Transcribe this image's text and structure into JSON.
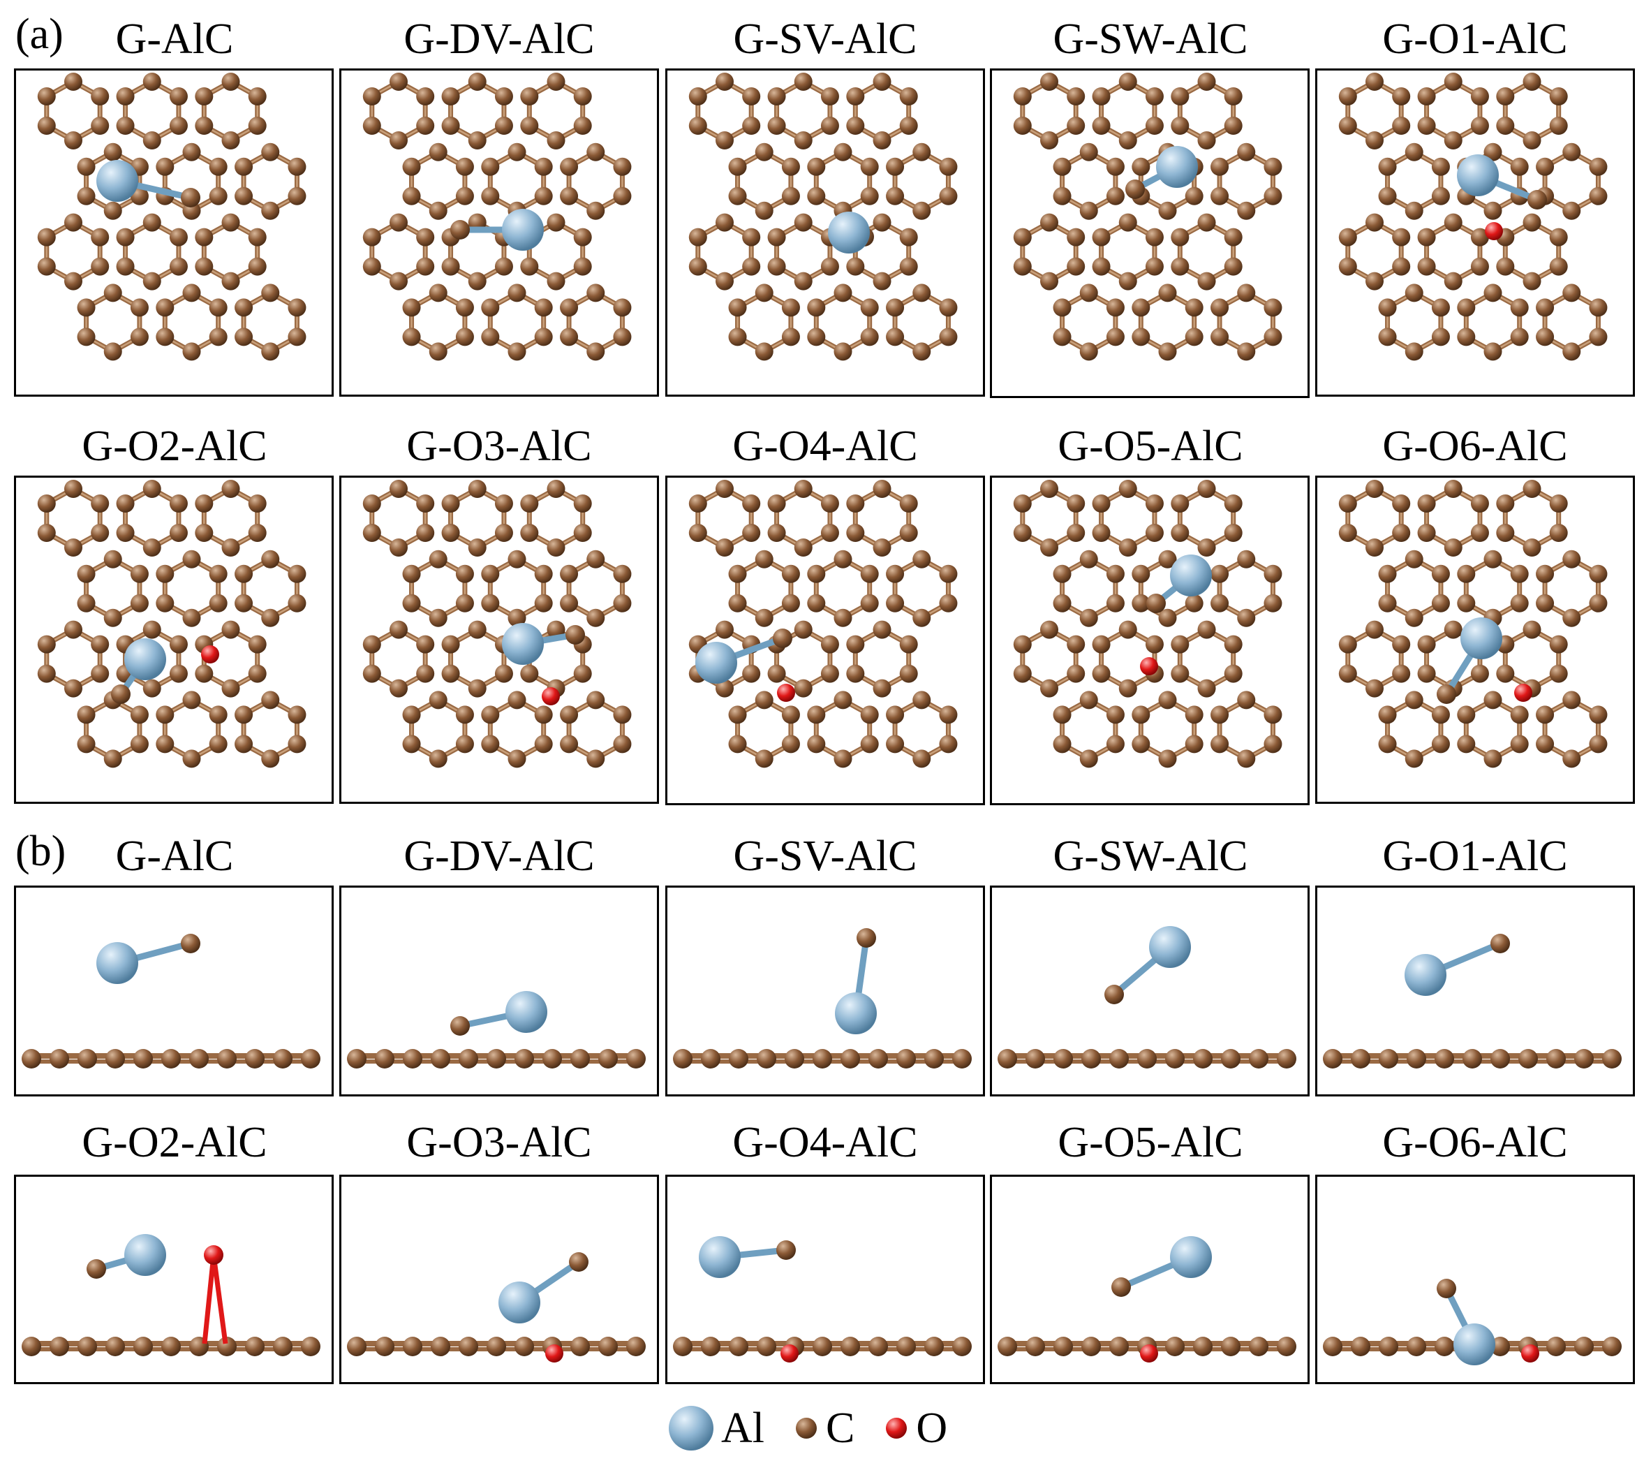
{
  "section_a": {
    "label": "(a)",
    "titles": [
      "G-AlC",
      "G-DV-AlC",
      "G-SV-AlC",
      "G-SW-AlC",
      "G-O1-AlC",
      "G-O2-AlC",
      "G-O3-AlC",
      "G-O4-AlC",
      "G-O5-AlC",
      "G-O6-AlC"
    ]
  },
  "section_b": {
    "label": "(b)",
    "titles": [
      "G-AlC",
      "G-DV-AlC",
      "G-SV-AlC",
      "G-SW-AlC",
      "G-O1-AlC",
      "G-O2-AlC",
      "G-O3-AlC",
      "G-O4-AlC",
      "G-O5-AlC",
      "G-O6-AlC"
    ]
  },
  "legend": [
    {
      "symbol": "Al",
      "color": "#8fb6d3",
      "icon": "al-atom-icon"
    },
    {
      "symbol": "C",
      "color": "#8b5a36",
      "icon": "c-atom-icon"
    },
    {
      "symbol": "O",
      "color": "#e01818",
      "icon": "o-atom-icon"
    }
  ],
  "colors": {
    "Al": "#8fb6d3",
    "C": "#8b5a36",
    "O": "#e01818",
    "bond": "#9a6a44"
  }
}
